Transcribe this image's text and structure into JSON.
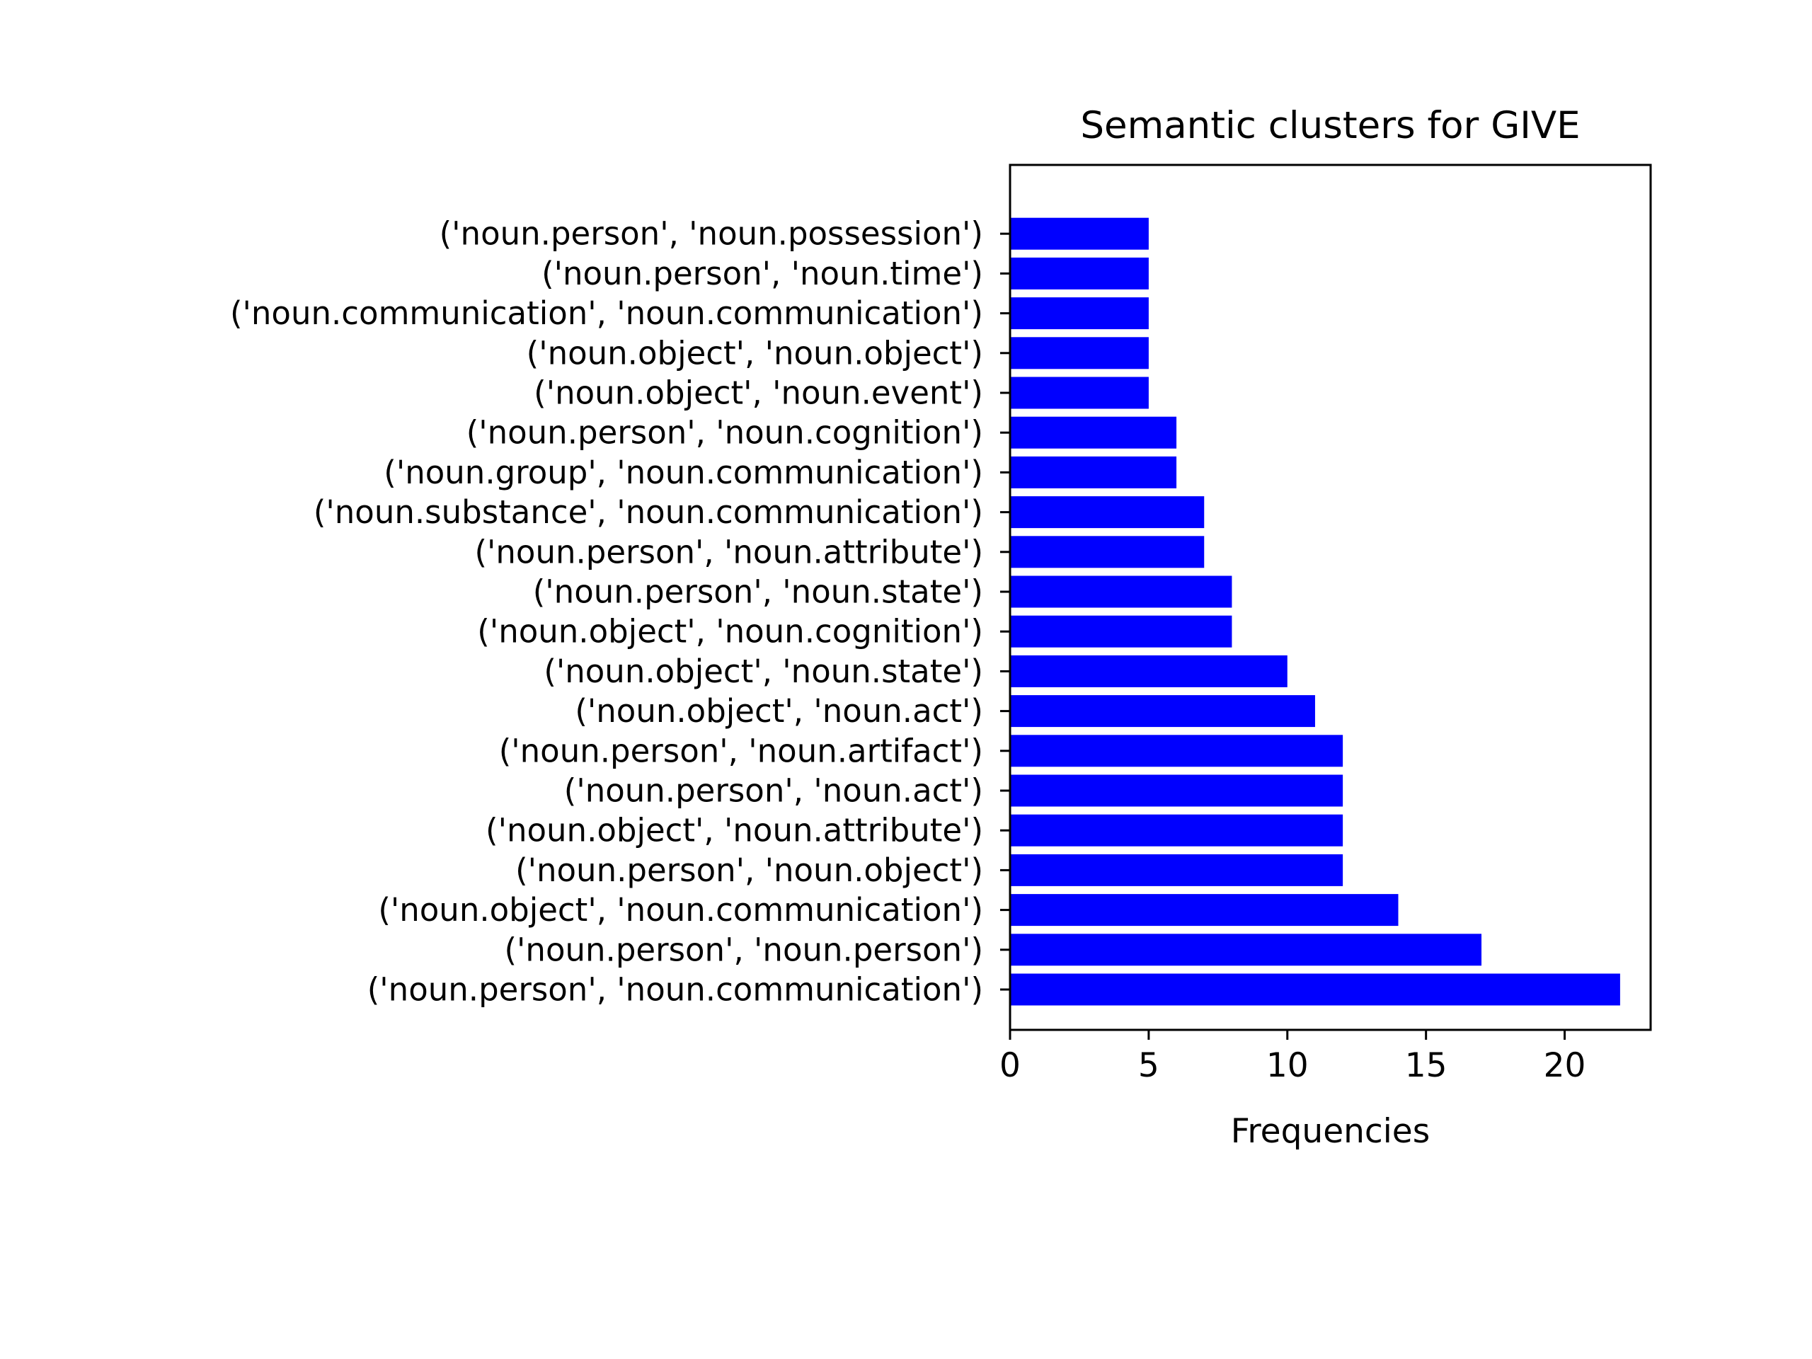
{
  "chart_data": {
    "type": "bar",
    "orientation": "horizontal",
    "title": "Semantic clusters for GIVE",
    "xlabel": "Frequencies",
    "ylabel": "",
    "xlim": [
      0,
      23.1
    ],
    "xticks": [
      0,
      5,
      10,
      15,
      20
    ],
    "grid": false,
    "bar_color": "#0000ff",
    "categories": [
      "('noun.person', 'noun.communication')",
      "('noun.person', 'noun.person')",
      "('noun.object', 'noun.communication')",
      "('noun.person', 'noun.object')",
      "('noun.object', 'noun.attribute')",
      "('noun.person', 'noun.act')",
      "('noun.person', 'noun.artifact')",
      "('noun.object', 'noun.act')",
      "('noun.object', 'noun.state')",
      "('noun.object', 'noun.cognition')",
      "('noun.person', 'noun.state')",
      "('noun.person', 'noun.attribute')",
      "('noun.substance', 'noun.communication')",
      "('noun.group', 'noun.communication')",
      "('noun.person', 'noun.cognition')",
      "('noun.object', 'noun.event')",
      "('noun.object', 'noun.object')",
      "('noun.communication', 'noun.communication')",
      "('noun.person', 'noun.time')",
      "('noun.person', 'noun.possession')"
    ],
    "values": [
      22,
      17,
      14,
      12,
      12,
      12,
      12,
      11,
      10,
      8,
      8,
      7,
      7,
      6,
      6,
      5,
      5,
      5,
      5,
      5
    ]
  }
}
